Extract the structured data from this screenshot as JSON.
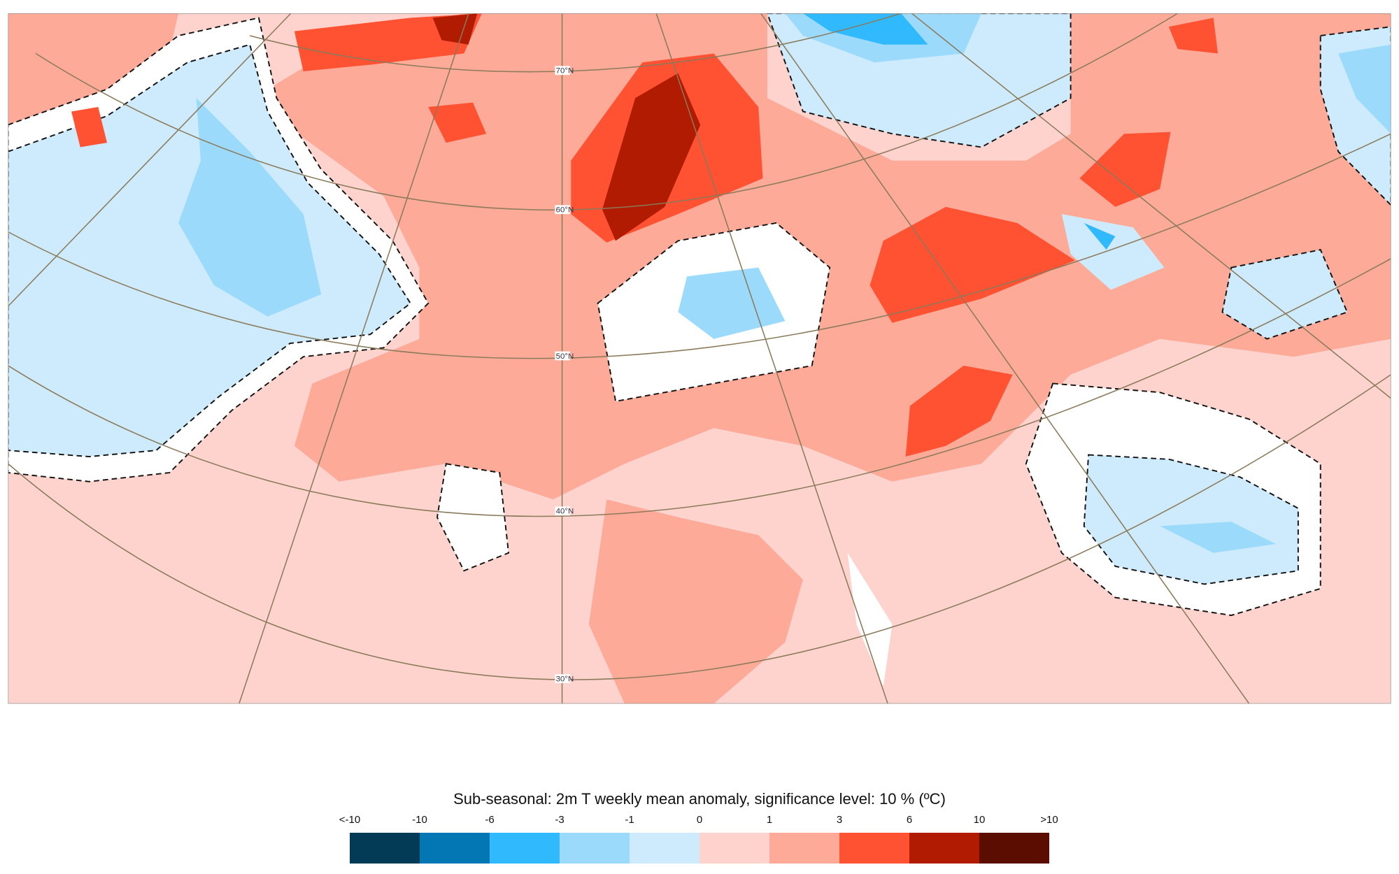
{
  "map": {
    "lat_labels": [
      "70°N",
      "60°N",
      "50°N",
      "40°N",
      "30°N"
    ]
  },
  "legend": {
    "title": "Sub-seasonal: 2m T weekly mean anomaly, significance level: 10 % (ºC)",
    "labels": [
      "<-10",
      "-10",
      "-6",
      "-3",
      "-1",
      "0",
      "1",
      "3",
      "6",
      "10",
      ">10"
    ],
    "colors": [
      "#033a56",
      "#0277b4",
      "#31b9fd",
      "#9cdafc",
      "#cdebfc",
      "#fed3cd",
      "#fdaa99",
      "#fe5233",
      "#b01b02",
      "#5c0d02"
    ]
  }
}
